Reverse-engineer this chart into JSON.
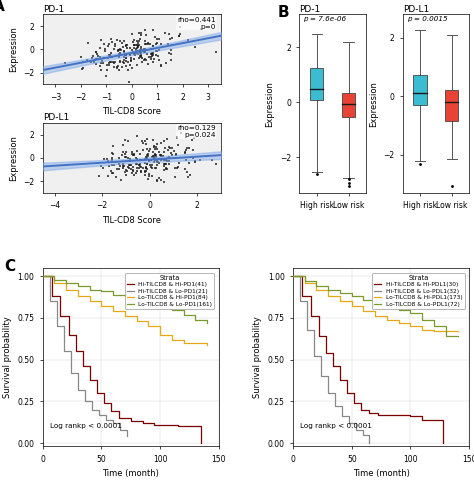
{
  "panel_A": {
    "scatter1": {
      "title": "PD-1",
      "xlabel": "TIL-CD8 Score",
      "ylabel": "Expression",
      "xlim": [
        -3.5,
        3.5
      ],
      "ylim": [
        -3.0,
        3.0
      ],
      "xticks": [
        -3,
        -2,
        -1,
        0,
        1,
        2,
        3
      ],
      "yticks": [
        -2,
        0,
        2
      ],
      "annotation": "rho=0.441\np=0",
      "slope": 0.42,
      "intercept": -0.3,
      "noise": 0.75,
      "seed": 42
    },
    "scatter2": {
      "title": "PD-L1",
      "xlabel": "TIL-CD8 Score",
      "ylabel": "Expression",
      "xlim": [
        -4.5,
        3.0
      ],
      "ylim": [
        -3.0,
        3.0
      ],
      "xticks": [
        -4,
        -2,
        0,
        2
      ],
      "yticks": [
        -2,
        0,
        2
      ],
      "annotation": "rho=0.129\np=0.024",
      "slope": 0.13,
      "intercept": -0.15,
      "noise": 0.85,
      "seed": 77
    }
  },
  "panel_B": {
    "box1": {
      "title": "PD-1",
      "ylabel": "Expression",
      "pval": "p = 7.6e-06",
      "high_risk": {
        "q1": 0.08,
        "median": 0.48,
        "q3": 1.25,
        "whisker_low": -2.55,
        "whisker_high": 2.5,
        "outliers": [
          -2.6
        ],
        "color": "#3BBCD0"
      },
      "low_risk": {
        "q1": -0.52,
        "median": -0.08,
        "q3": 0.32,
        "whisker_low": -2.75,
        "whisker_high": 2.2,
        "outliers": [
          -2.8,
          -2.95,
          -3.05
        ],
        "color": "#E84335"
      },
      "ylim": [
        -3.3,
        3.2
      ],
      "yticks": [
        -2,
        0,
        2
      ]
    },
    "box2": {
      "title": "PD-L1",
      "ylabel": "Expression",
      "pval": "p = 0.0015",
      "high_risk": {
        "q1": -0.28,
        "median": 0.12,
        "q3": 0.72,
        "whisker_low": -2.2,
        "whisker_high": 2.25,
        "outliers": [
          -2.3
        ],
        "color": "#3BBCD0"
      },
      "low_risk": {
        "q1": -0.85,
        "median": -0.18,
        "q3": 0.22,
        "whisker_low": -2.15,
        "whisker_high": 2.1,
        "outliers": [
          -3.05
        ],
        "color": "#E84335"
      },
      "ylim": [
        -3.3,
        2.8
      ],
      "yticks": [
        -2,
        0,
        2
      ]
    }
  },
  "panel_C": {
    "km1": {
      "xlabel": "Time (month)",
      "ylabel": "Survival probability",
      "xlim": [
        0,
        150
      ],
      "ylim": [
        -0.02,
        1.05
      ],
      "logrank": "Log rankp < 0.0001",
      "strata_label": "Strata",
      "curves": [
        {
          "label": "Hi-TILCD8 & Hi-PD1(41)",
          "color": "#7B0000",
          "times": [
            0,
            8,
            15,
            22,
            28,
            34,
            40,
            46,
            52,
            58,
            65,
            75,
            85,
            95,
            105,
            115,
            125,
            135
          ],
          "surv": [
            1.0,
            0.88,
            0.76,
            0.65,
            0.55,
            0.46,
            0.38,
            0.3,
            0.24,
            0.19,
            0.15,
            0.13,
            0.12,
            0.11,
            0.11,
            0.1,
            0.1,
            0.0
          ]
        },
        {
          "label": "Hi-TILCD8 & Lo-PD1(21)",
          "color": "#888888",
          "times": [
            0,
            6,
            12,
            18,
            24,
            30,
            36,
            42,
            48,
            54,
            60,
            66,
            72
          ],
          "surv": [
            1.0,
            0.85,
            0.7,
            0.55,
            0.42,
            0.32,
            0.25,
            0.2,
            0.17,
            0.14,
            0.12,
            0.08,
            0.04
          ]
        },
        {
          "label": "Lo-TILCD8 & Hi-PD1(84)",
          "color": "#E6A817",
          "times": [
            0,
            10,
            20,
            30,
            40,
            50,
            60,
            70,
            80,
            90,
            100,
            110,
            120,
            130,
            140
          ],
          "surv": [
            1.0,
            0.96,
            0.92,
            0.88,
            0.85,
            0.82,
            0.79,
            0.76,
            0.73,
            0.7,
            0.65,
            0.62,
            0.6,
            0.6,
            0.59
          ]
        },
        {
          "label": "Lo-TILCD8 & Lo-PD1(161)",
          "color": "#7A9A2E",
          "times": [
            0,
            10,
            20,
            30,
            40,
            50,
            60,
            70,
            80,
            90,
            100,
            110,
            120,
            130,
            140
          ],
          "surv": [
            1.0,
            0.98,
            0.96,
            0.94,
            0.92,
            0.91,
            0.89,
            0.88,
            0.86,
            0.84,
            0.82,
            0.8,
            0.77,
            0.74,
            0.72
          ]
        }
      ]
    },
    "km2": {
      "xlabel": "Time (month)",
      "ylabel": "Survival probability",
      "xlim": [
        0,
        150
      ],
      "ylim": [
        -0.02,
        1.05
      ],
      "logrank": "Log rankp < 0.0001",
      "strata_label": "Strata",
      "curves": [
        {
          "label": "Hi-TILCD8 & Hi-PDL1(30)",
          "color": "#7B0000",
          "times": [
            0,
            8,
            15,
            22,
            28,
            34,
            40,
            46,
            52,
            58,
            65,
            72,
            80,
            90,
            100,
            110,
            120,
            128
          ],
          "surv": [
            1.0,
            0.88,
            0.76,
            0.64,
            0.54,
            0.46,
            0.38,
            0.3,
            0.24,
            0.2,
            0.18,
            0.17,
            0.17,
            0.17,
            0.16,
            0.14,
            0.14,
            0.0
          ]
        },
        {
          "label": "Hi-TILCD8 & Lo-PDL1(32)",
          "color": "#888888",
          "times": [
            0,
            6,
            12,
            18,
            24,
            30,
            36,
            42,
            48,
            54,
            60,
            65
          ],
          "surv": [
            1.0,
            0.85,
            0.68,
            0.52,
            0.4,
            0.3,
            0.22,
            0.16,
            0.12,
            0.08,
            0.05,
            0.0
          ]
        },
        {
          "label": "Lo-TILCD8 & Hi-PDL1(173)",
          "color": "#E6A817",
          "times": [
            0,
            10,
            20,
            30,
            40,
            50,
            60,
            70,
            80,
            90,
            100,
            110,
            120,
            130,
            140
          ],
          "surv": [
            1.0,
            0.96,
            0.92,
            0.88,
            0.85,
            0.82,
            0.79,
            0.76,
            0.74,
            0.72,
            0.7,
            0.68,
            0.67,
            0.67,
            0.67
          ]
        },
        {
          "label": "Lo-TILCD8 & Lo-PDL1(72)",
          "color": "#7A9A2E",
          "times": [
            0,
            10,
            20,
            30,
            40,
            50,
            60,
            70,
            80,
            90,
            100,
            110,
            120,
            130,
            140
          ],
          "surv": [
            1.0,
            0.97,
            0.94,
            0.92,
            0.9,
            0.88,
            0.86,
            0.84,
            0.82,
            0.8,
            0.78,
            0.74,
            0.7,
            0.64,
            0.64
          ]
        }
      ]
    }
  },
  "bg_color": "#FFFFFF",
  "plot_bg_color": "#F0F0F0",
  "scatter_color": "#1A1A1A",
  "line_color": "#4472C4",
  "line_ci_color": "#7BA7E8"
}
